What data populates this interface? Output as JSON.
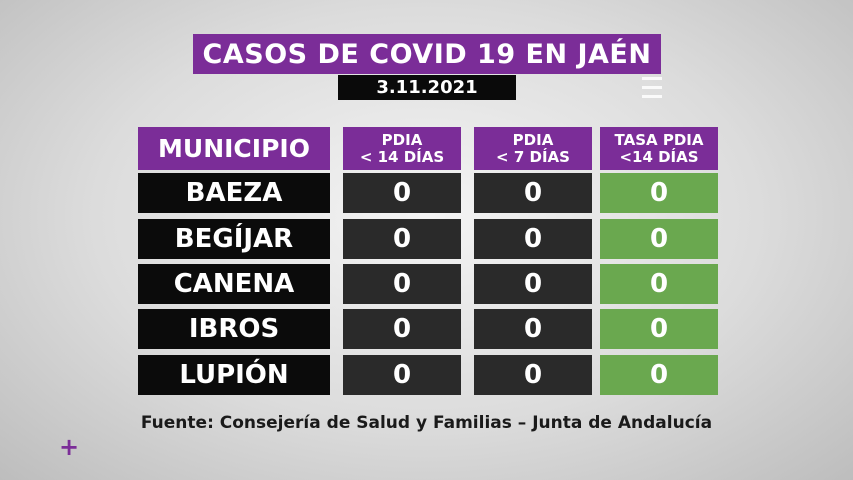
{
  "title": "CASOS DE COVID 19 EN JAÉN",
  "date": "3.11.2021",
  "headers": {
    "municipio": "MUNICIPIO",
    "col1": [
      "PDIA",
      "< 14 DÍAS"
    ],
    "col2": [
      "PDIA",
      "< 7 DÍAS"
    ],
    "col3": [
      "TASA PDIA",
      "<14 DÍAS"
    ]
  },
  "rows": [
    {
      "name": "BAEZA",
      "pdia14": "0",
      "pdia7": "0",
      "tasa": "0"
    },
    {
      "name": "BEGÍJAR",
      "pdia14": "0",
      "pdia7": "0",
      "tasa": "0"
    },
    {
      "name": "CANENA",
      "pdia14": "0",
      "pdia7": "0",
      "tasa": "0"
    },
    {
      "name": "IBROS",
      "pdia14": "0",
      "pdia7": "0",
      "tasa": "0"
    },
    {
      "name": "LUPIÓN",
      "pdia14": "0",
      "pdia7": "0",
      "tasa": "0"
    }
  ],
  "source": "Fuente: Consejería de Salud y Familias – Junta de Andalucía",
  "plus_glyph": "+",
  "colors": {
    "purple": "#7b2d98",
    "green": "#6aa84f",
    "dark": "#2a2a2a",
    "black": "#0b0b0b"
  }
}
